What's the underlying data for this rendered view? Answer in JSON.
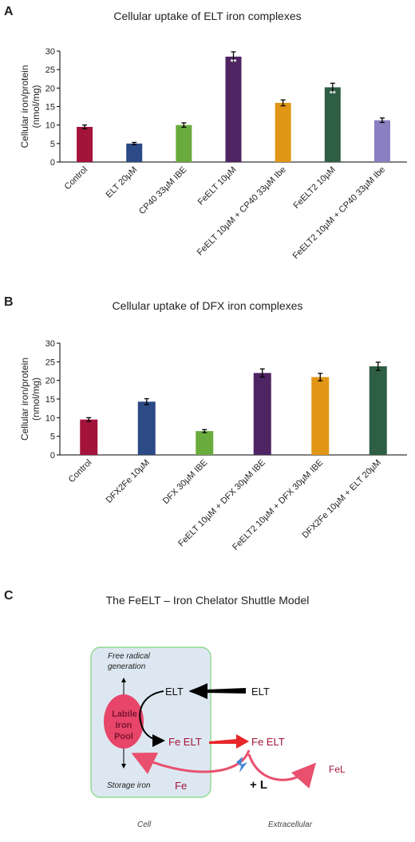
{
  "panels": {
    "a_letter": "A",
    "b_letter": "B",
    "c_letter": "C"
  },
  "chart_data": [
    {
      "type": "bar",
      "title": "Cellular uptake of ELT iron complexes",
      "ylabel_line1": "Cellular iron/protein",
      "ylabel_line2": "(nmol/mg)",
      "ylim": [
        0,
        30
      ],
      "yticks": [
        0,
        5,
        10,
        15,
        20,
        25,
        30
      ],
      "categories": [
        "Control",
        "ELT 20µM",
        "CP40 33µM IBE",
        "FeELT 10µM",
        "FeELT 10µM + CP40 33µM Ibe",
        "FeELT2 10µM",
        "FeELT2 10µM + CP40 33µM Ibe"
      ],
      "values": [
        9.5,
        5.0,
        10.0,
        28.5,
        16.0,
        20.2,
        11.3
      ],
      "errors": [
        0.5,
        0.3,
        0.6,
        1.3,
        0.8,
        1.1,
        0.6
      ],
      "colors": [
        "#a3133a",
        "#2b4a86",
        "#6aab3e",
        "#4f2462",
        "#e29616",
        "#2e5e43",
        "#8a7fc0"
      ],
      "annotations": [
        "",
        "",
        "",
        "**",
        "",
        "**",
        ""
      ]
    },
    {
      "type": "bar",
      "title": "Cellular uptake of DFX iron complexes",
      "ylabel_line1": "Cellular iron/protein",
      "ylabel_line2": "(nmol/mg)",
      "ylim": [
        0,
        30
      ],
      "yticks": [
        0,
        5,
        10,
        15,
        20,
        25,
        30
      ],
      "categories": [
        "Control",
        "DFX2Fe 10µM",
        "DFX 30µM IBE",
        "FeELT 10µM + DFX 30µM IBE",
        "FeELT2 10µM + DFX 30µM IBE",
        "DFX2Fe 10µM + ELT 20µM"
      ],
      "values": [
        9.5,
        14.3,
        6.4,
        22.0,
        20.9,
        23.8
      ],
      "errors": [
        0.5,
        0.8,
        0.4,
        1.1,
        1.0,
        1.1
      ],
      "colors": [
        "#a3133a",
        "#2b4a86",
        "#6aab3e",
        "#4f2462",
        "#e29616",
        "#2e5e43"
      ],
      "annotations": [
        "",
        "",
        "",
        "",
        "",
        ""
      ]
    }
  ],
  "diagram": {
    "title": "The FeELT – Iron Chelator Shuttle Model",
    "free_radical_line1": "Free radical",
    "free_radical_line2": "generation",
    "storage_iron": "Storage iron",
    "pool_line1": "Labile",
    "pool_line2": "Iron",
    "pool_line3": "Pool",
    "elt_inside": "ELT",
    "elt_outside": "ELT",
    "fe_elt_inside": "Fe ELT",
    "fe_elt_outside": "Fe ELT",
    "fe_label": "Fe",
    "plus_l": "+ L",
    "fel": "FeL",
    "cell_label": "Cell",
    "extracellular_label": "Extracellular",
    "colors": {
      "cell_fill": "#dde7f1",
      "cell_border": "#7ed67e",
      "pool": "#e8456a",
      "red_text": "#a3133a",
      "arrow_red": "#e8506e",
      "bright_red": "#e8262a",
      "lightning": "#3f86d6"
    }
  }
}
